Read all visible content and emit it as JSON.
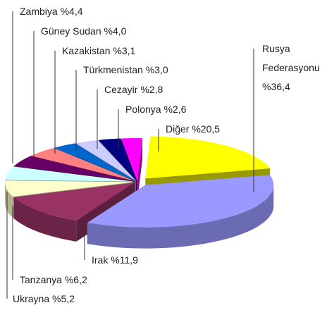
{
  "chart_data": {
    "type": "pie3d",
    "categories": [
      "Rusya Federasyonu",
      "Irak",
      "Tanzanya",
      "Ukrayna",
      "Zambiya",
      "Güney Sudan",
      "Kazakistan",
      "Türkmenistan",
      "Cezayir",
      "Polonya",
      "Diğer"
    ],
    "values": [
      36.4,
      11.9,
      6.2,
      5.2,
      4.4,
      4.0,
      3.1,
      3.0,
      2.8,
      2.6,
      20.5
    ],
    "value_labels": [
      "%36,4",
      "%11,9",
      "%6,2",
      "%5,2",
      "%4,4",
      "%4,0",
      "%3,1",
      "%3,0",
      "%2,8",
      "%2,6",
      "%20,5"
    ],
    "colors": [
      "#9999ff",
      "#993366",
      "#ffffcc",
      "#ccffff",
      "#660066",
      "#ff8080",
      "#0066cc",
      "#ccccff",
      "#000080",
      "#ff00ff",
      "#ffff00"
    ]
  }
}
